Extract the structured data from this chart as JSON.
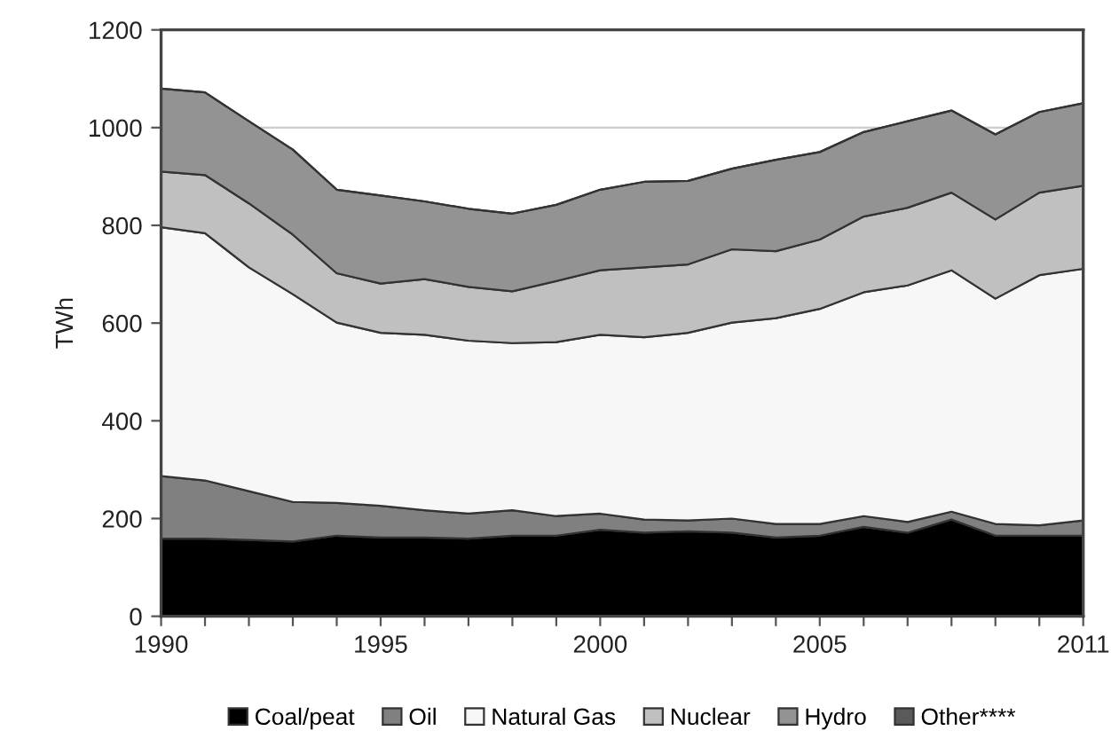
{
  "chart_data": {
    "type": "area",
    "stacked": true,
    "ylabel": "TWh",
    "x": [
      1990,
      1991,
      1992,
      1993,
      1994,
      1995,
      1996,
      1997,
      1998,
      1999,
      2000,
      2001,
      2002,
      2003,
      2004,
      2005,
      2006,
      2007,
      2008,
      2009,
      2010,
      2011
    ],
    "series": [
      {
        "name": "Coal/peat",
        "color": "#000000",
        "values": [
          159,
          159,
          156,
          153,
          165,
          161,
          161,
          159,
          165,
          165,
          177,
          171,
          174,
          171,
          161,
          165,
          183,
          171,
          198,
          165,
          165,
          165
        ]
      },
      {
        "name": "Oil",
        "color": "#808080",
        "values": [
          128,
          119,
          100,
          81,
          67,
          65,
          56,
          51,
          52,
          40,
          33,
          27,
          22,
          29,
          28,
          24,
          22,
          22,
          16,
          24,
          21,
          31
        ]
      },
      {
        "name": "Natural Gas",
        "color": "#f7f7f7",
        "values": [
          509,
          506,
          458,
          425,
          369,
          354,
          359,
          354,
          342,
          356,
          366,
          373,
          384,
          401,
          421,
          440,
          458,
          484,
          494,
          461,
          512,
          515
        ]
      },
      {
        "name": "Nuclear",
        "color": "#c0c0c0",
        "values": [
          114,
          119,
          131,
          122,
          101,
          101,
          114,
          110,
          106,
          125,
          132,
          143,
          140,
          150,
          137,
          142,
          155,
          159,
          159,
          162,
          169,
          170
        ]
      },
      {
        "name": "Hydro",
        "color": "#939393",
        "values": [
          170,
          169,
          168,
          174,
          171,
          180,
          159,
          160,
          159,
          156,
          165,
          175,
          171,
          165,
          187,
          179,
          173,
          177,
          168,
          174,
          165,
          169
        ]
      },
      {
        "name": "Other****",
        "color": "#5a5a5a",
        "values": [
          null,
          null,
          null,
          null,
          null,
          null,
          null,
          null,
          null,
          null,
          null,
          null,
          null,
          null,
          null,
          null,
          null,
          null,
          null,
          null,
          null,
          null
        ]
      }
    ],
    "xlim": [
      1990,
      2011
    ],
    "ylim": [
      0,
      1200
    ],
    "xticks": [
      1990,
      {
        "value": 1991,
        "label": null
      },
      {
        "value": 1992,
        "label": null
      },
      {
        "value": 1993,
        "label": null
      },
      {
        "value": 1994,
        "label": null
      },
      1995,
      {
        "value": 1996,
        "label": null
      },
      {
        "value": 1997,
        "label": null
      },
      {
        "value": 1998,
        "label": null
      },
      {
        "value": 1999,
        "label": null
      },
      2000,
      {
        "value": 2001,
        "label": null
      },
      {
        "value": 2002,
        "label": null
      },
      {
        "value": 2003,
        "label": null
      },
      {
        "value": 2004,
        "label": null
      },
      2005,
      {
        "value": 2006,
        "label": null
      },
      {
        "value": 2007,
        "label": null
      },
      {
        "value": 2008,
        "label": null
      },
      {
        "value": 2009,
        "label": null
      },
      {
        "value": 2010,
        "label": null
      },
      2011
    ],
    "yticks": [
      0,
      200,
      400,
      600,
      800,
      1000,
      1200
    ],
    "grid": "y",
    "legend": "bottom"
  }
}
